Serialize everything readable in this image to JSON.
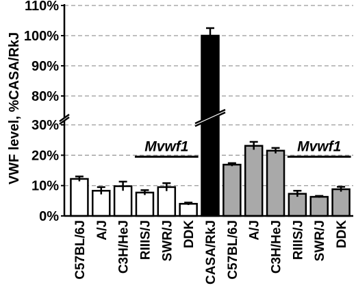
{
  "chart_data": {
    "type": "bar",
    "title": "",
    "xlabel": "",
    "ylabel": "VWF level, %CASA/RkJ",
    "axis_break": {
      "between": [
        35,
        75
      ]
    },
    "yticks_lower": [
      "0%",
      "10%",
      "20%",
      "30%"
    ],
    "yticks_upper": [
      "80%",
      "90%",
      "100%",
      "110%"
    ],
    "ylim_lower": [
      0,
      35
    ],
    "ylim_upper": [
      75,
      110
    ],
    "grid": true,
    "categories": [
      "C57BL/6J",
      "A/J",
      "C3H/HeJ",
      "RIIIS/J",
      "SWR/J",
      "DDK",
      "CASA/RkJ",
      "C57BL/6J",
      "A/J",
      "C3H/HeJ",
      "RIIIS/J",
      "SWR/J",
      "DDK"
    ],
    "values": [
      12.2,
      8.3,
      9.8,
      7.7,
      9.5,
      4.0,
      100,
      16.9,
      23.1,
      21.5,
      7.3,
      6.3,
      8.8
    ],
    "errors": [
      0.8,
      1.2,
      1.5,
      0.8,
      1.3,
      0.4,
      2.5,
      0.5,
      1.3,
      0.9,
      1.0,
      0.3,
      0.8
    ],
    "groups": [
      "white",
      "white",
      "white",
      "white",
      "white",
      "white",
      "black",
      "gray",
      "gray",
      "gray",
      "gray",
      "gray",
      "gray"
    ],
    "annotations": [
      {
        "text": "Mvwf1",
        "bars": [
          3,
          5
        ],
        "y": 19.5
      },
      {
        "text": "Mvwf1",
        "bars": [
          10,
          12
        ],
        "y": 19.5
      }
    ],
    "colors": {
      "white": "#ffffff",
      "black": "#000000",
      "gray": "#a9a9a9",
      "grid": "#999999"
    }
  }
}
